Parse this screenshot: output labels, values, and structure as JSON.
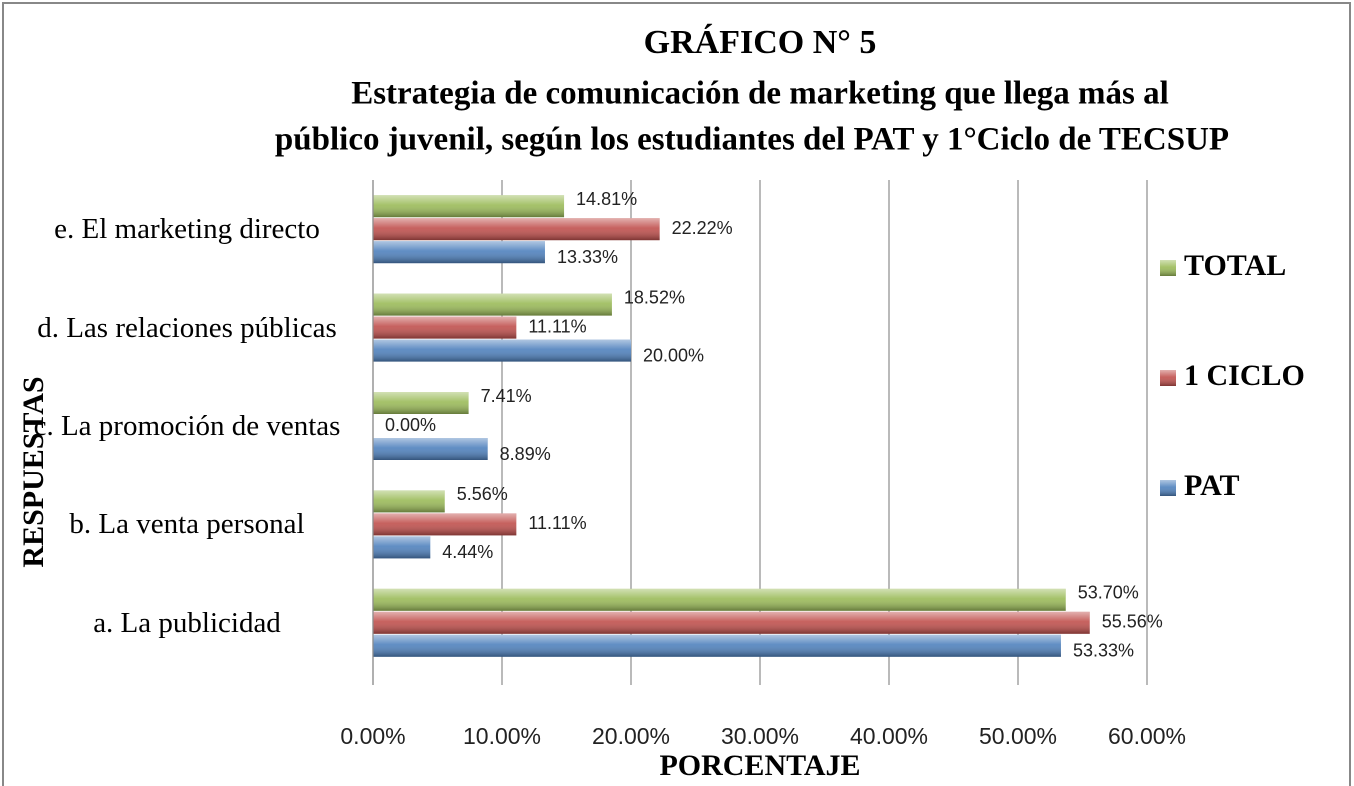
{
  "chart_data": {
    "type": "barh",
    "title": "GRÁFICO N° 5",
    "subtitle": [
      "Estrategia de comunicación de marketing que llega más al",
      "público juvenil, según los estudiantes del PAT y 1°Ciclo de TECSUP"
    ],
    "xlabel": "PORCENTAJE",
    "ylabel": "RESPUESTAS",
    "categories": [
      "a. La publicidad",
      "b. La venta personal",
      "c. La promoción de ventas",
      "d. Las relaciones públicas",
      "e. El marketing directo"
    ],
    "series": [
      {
        "name": "PAT",
        "color": "#4f81bd",
        "values": [
          53.33,
          4.44,
          8.89,
          20.0,
          13.33
        ],
        "value_labels": [
          "53.33%",
          "4.44%",
          "8.89%",
          "20.00%",
          "13.33%"
        ]
      },
      {
        "name": "1 CICLO",
        "color": "#c0504d",
        "values": [
          55.56,
          11.11,
          0.0,
          11.11,
          22.22
        ],
        "value_labels": [
          "55.56%",
          "11.11%",
          "0.00%",
          "11.11%",
          "22.22%"
        ]
      },
      {
        "name": "TOTAL",
        "color": "#9bbb59",
        "values": [
          53.7,
          5.56,
          7.41,
          18.52,
          14.81
        ],
        "value_labels": [
          "53.70%",
          "5.56%",
          "7.41%",
          "18.52%",
          "14.81%"
        ]
      }
    ],
    "xlim": [
      0,
      60
    ],
    "xticks": [
      {
        "value": 0,
        "label": "0.00%"
      },
      {
        "value": 10,
        "label": "10.00%"
      },
      {
        "value": 20,
        "label": "20.00%"
      },
      {
        "value": 30,
        "label": "30.00%"
      },
      {
        "value": 40,
        "label": "40.00%"
      },
      {
        "value": 50,
        "label": "50.00%"
      },
      {
        "value": 60,
        "label": "60.00%"
      }
    ],
    "grid": true,
    "legend": "right"
  }
}
